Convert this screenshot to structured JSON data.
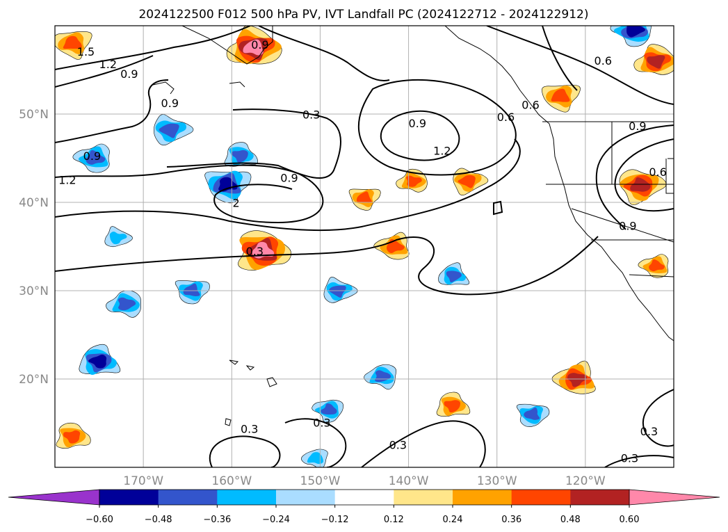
{
  "chart_data": {
    "type": "contour_map",
    "title": "2024122500 F012 500 hPa PV, IVT Landfall PC (2024122712 - 2024122912)",
    "lat_ticks": [
      "50°N",
      "40°N",
      "30°N",
      "20°N"
    ],
    "lon_ticks": [
      "170°W",
      "160°W",
      "150°W",
      "140°W",
      "130°W",
      "120°W"
    ],
    "extent": {
      "lon": [
        -180,
        -110
      ],
      "lat": [
        10,
        60
      ]
    },
    "grid": true,
    "colorbar": {
      "orientation": "horizontal",
      "extend": "both",
      "levels": [
        -0.72,
        -0.6,
        -0.48,
        -0.36,
        -0.24,
        -0.12,
        0.12,
        0.24,
        0.36,
        0.48,
        0.6,
        0.72
      ],
      "tick_labels": [
        "−0.60",
        "−0.48",
        "−0.36",
        "−0.24",
        "−0.12",
        "0.12",
        "0.24",
        "0.36",
        "0.48",
        "0.60"
      ],
      "colors": [
        "#9933cc",
        "#000099",
        "#3355cc",
        "#00bbff",
        "#aaddff",
        "#ffffff",
        "#ffe68a",
        "#ffa200",
        "#ff4500",
        "#b22222",
        "#ff88aa"
      ]
    },
    "contour_labels": [
      {
        "text": "0.9",
        "lon": -156.8,
        "lat": 57.8
      },
      {
        "text": "1.2",
        "lon": -174.0,
        "lat": 55.6
      },
      {
        "text": "0.9",
        "lon": -171.6,
        "lat": 54.5
      },
      {
        "text": "1.5",
        "lon": -176.5,
        "lat": 57.0
      },
      {
        "text": "0.9",
        "lon": -167.0,
        "lat": 51.2
      },
      {
        "text": "0.3",
        "lon": -151.0,
        "lat": 49.9
      },
      {
        "text": "0.9",
        "lon": -139.0,
        "lat": 48.9
      },
      {
        "text": "0.6",
        "lon": -129.0,
        "lat": 49.6
      },
      {
        "text": "1.2",
        "lon": -136.2,
        "lat": 45.8
      },
      {
        "text": "0.9",
        "lon": -175.8,
        "lat": 45.2
      },
      {
        "text": "1.2",
        "lon": -178.6,
        "lat": 42.5
      },
      {
        "text": "0.9",
        "lon": -153.5,
        "lat": 42.7
      },
      {
        "text": "2",
        "lon": -159.5,
        "lat": 39.9
      },
      {
        "text": "0.3",
        "lon": -157.4,
        "lat": 34.4
      },
      {
        "text": "0.6",
        "lon": -118.0,
        "lat": 56.0
      },
      {
        "text": "0.6",
        "lon": -126.2,
        "lat": 51.0
      },
      {
        "text": "0.9",
        "lon": -114.1,
        "lat": 48.6
      },
      {
        "text": "0.6",
        "lon": -111.8,
        "lat": 43.4
      },
      {
        "text": "0.9",
        "lon": -115.2,
        "lat": 37.3
      },
      {
        "text": "0.3",
        "lon": -158.0,
        "lat": 14.3
      },
      {
        "text": "0.3",
        "lon": -149.8,
        "lat": 15.0
      },
      {
        "text": "0.3",
        "lon": -141.2,
        "lat": 12.5
      },
      {
        "text": "0.3",
        "lon": -112.8,
        "lat": 14.0
      },
      {
        "text": "0.3",
        "lon": -115.0,
        "lat": 11.0
      }
    ],
    "positive_anomalies": [
      {
        "lon": -157.5,
        "lat": 57.5,
        "peak": 0.65
      },
      {
        "lon": -178.0,
        "lat": 58.0,
        "peak": 0.45
      },
      {
        "lon": -156.5,
        "lat": 34.5,
        "peak": 0.68
      },
      {
        "lon": -121.0,
        "lat": 20.0,
        "peak": 0.52
      },
      {
        "lon": -113.8,
        "lat": 41.9,
        "peak": 0.55
      },
      {
        "lon": -112.0,
        "lat": 56.0,
        "peak": 0.5
      },
      {
        "lon": -122.8,
        "lat": 52.0,
        "peak": 0.45
      },
      {
        "lon": -178.0,
        "lat": 13.5,
        "peak": 0.42
      },
      {
        "lon": -141.6,
        "lat": 35.0,
        "peak": 0.42
      },
      {
        "lon": -133.3,
        "lat": 42.4,
        "peak": 0.4
      },
      {
        "lon": -139.5,
        "lat": 42.4,
        "peak": 0.36
      },
      {
        "lon": -145.0,
        "lat": 40.5,
        "peak": 0.36
      },
      {
        "lon": -135.0,
        "lat": 17.0,
        "peak": 0.4
      },
      {
        "lon": -112.0,
        "lat": 32.8,
        "peak": 0.36
      }
    ],
    "negative_anomalies": [
      {
        "lon": -160.5,
        "lat": 42.0,
        "peak": -0.55
      },
      {
        "lon": -159.0,
        "lat": 45.3,
        "peak": -0.4
      },
      {
        "lon": -175.5,
        "lat": 45.0,
        "peak": -0.45
      },
      {
        "lon": -167.0,
        "lat": 48.2,
        "peak": -0.46
      },
      {
        "lon": -172.0,
        "lat": 28.5,
        "peak": -0.42
      },
      {
        "lon": -164.5,
        "lat": 30.0,
        "peak": -0.4
      },
      {
        "lon": -175.0,
        "lat": 22.0,
        "peak": -0.5
      },
      {
        "lon": -114.5,
        "lat": 59.5,
        "peak": -0.5
      },
      {
        "lon": -148.0,
        "lat": 30.0,
        "peak": -0.38
      },
      {
        "lon": -143.0,
        "lat": 20.3,
        "peak": -0.38
      },
      {
        "lon": -126.0,
        "lat": 16.0,
        "peak": -0.38
      },
      {
        "lon": -134.9,
        "lat": 31.7,
        "peak": -0.36
      },
      {
        "lon": -149.0,
        "lat": 16.5,
        "peak": -0.36
      },
      {
        "lon": -173.0,
        "lat": 36.0,
        "peak": -0.3
      },
      {
        "lon": -150.5,
        "lat": 11.0,
        "peak": -0.3
      }
    ]
  }
}
